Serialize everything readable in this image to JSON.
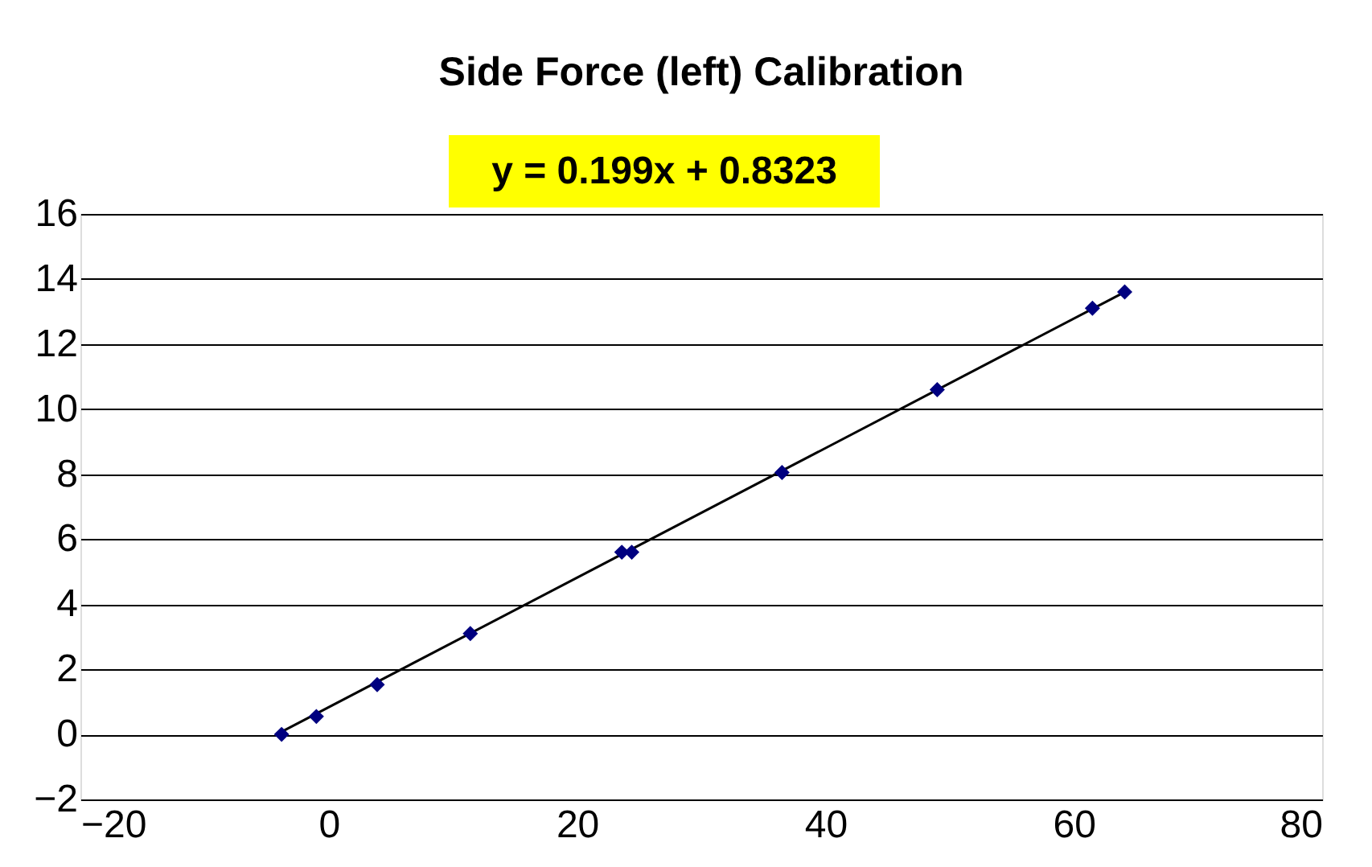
{
  "chart_data": {
    "type": "scatter",
    "title": "Side Force (left) Calibration",
    "annotations": [
      "y = 0.199x + 0.8323"
    ],
    "xlim": [
      -20,
      80
    ],
    "xticks": [
      -20,
      0,
      20,
      40,
      60,
      80
    ],
    "ylim": [
      -2,
      16
    ],
    "yticks": [
      -2,
      0,
      2,
      4,
      6,
      8,
      10,
      12,
      14,
      16
    ],
    "grid": "y",
    "marker": "diamond",
    "series": [
      {
        "color": "#000080",
        "x": [
          -3.8,
          -1.0,
          3.9,
          11.4,
          23.6,
          24.4,
          36.5,
          49.0,
          61.5,
          64.1
        ],
        "values": [
          0.0,
          0.55,
          1.53,
          3.1,
          5.6,
          5.6,
          8.05,
          10.6,
          13.1,
          13.6
        ]
      },
      {
        "type": "line",
        "marker": "none",
        "color": "#000000",
        "line_style": "solid",
        "x": [
          -3.8,
          64.1
        ],
        "values": [
          0.08,
          13.6
        ]
      }
    ]
  }
}
